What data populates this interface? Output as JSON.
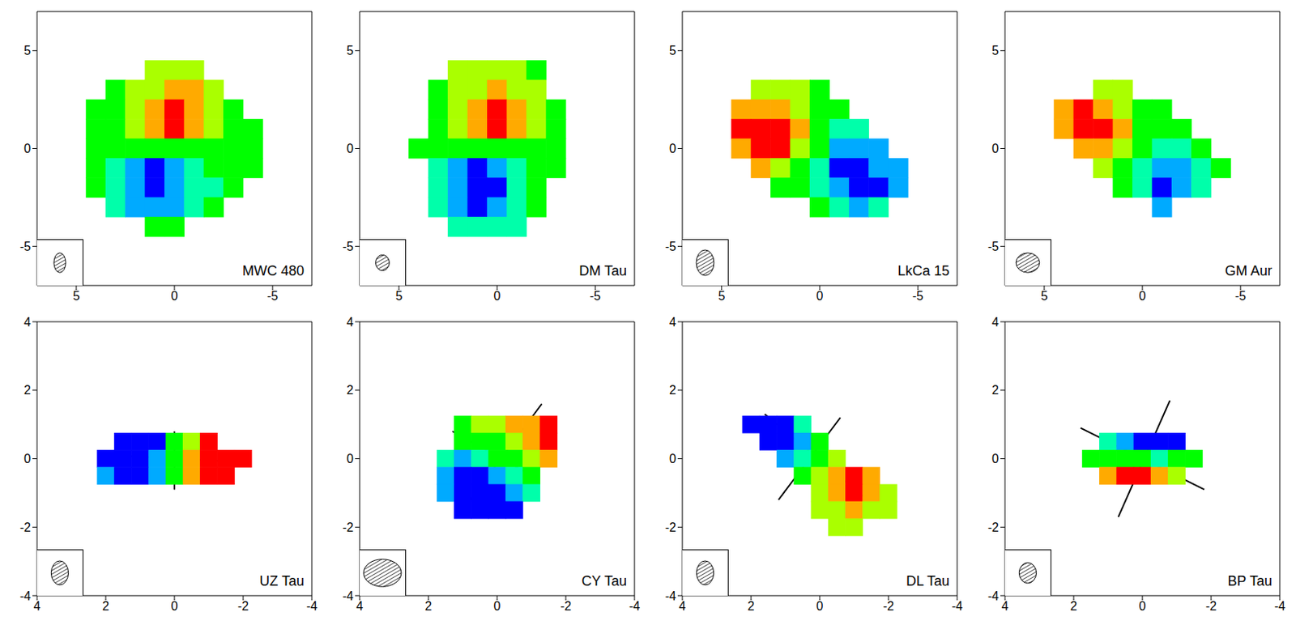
{
  "chart_data": [
    {
      "type": "heatmap",
      "title": "MWC 480",
      "xlim": [
        7,
        -7
      ],
      "ylim": [
        -7,
        7
      ],
      "xticks": [
        5,
        0,
        -5
      ],
      "yticks": [
        -5,
        0,
        5
      ],
      "color_range": [
        -3,
        3
      ],
      "beam": [
        0.6,
        1.0
      ],
      "cells": {
        "x": [
          4,
          3,
          2,
          1,
          0,
          -1,
          -2,
          -3,
          -4
        ],
        "y": [
          4,
          3,
          2,
          1,
          0,
          -1,
          -2,
          -3,
          -4
        ],
        "velocity": [
          [
            null,
            null,
            null,
            1,
            1,
            1,
            null,
            null,
            null
          ],
          [
            null,
            0,
            1,
            1,
            2,
            2,
            1,
            null,
            null
          ],
          [
            0,
            0,
            1,
            2,
            3,
            2,
            1,
            0,
            null
          ],
          [
            0,
            0,
            1,
            2,
            3,
            2,
            1,
            0,
            0
          ],
          [
            0,
            0,
            0,
            0,
            0,
            0,
            0,
            0,
            0
          ],
          [
            0,
            -1,
            -2,
            -3,
            -2,
            -1,
            0,
            0,
            0
          ],
          [
            0,
            -1,
            -2,
            -3,
            -2,
            -1,
            -1,
            0,
            null
          ],
          [
            null,
            -1,
            -2,
            -2,
            -2,
            -1,
            0,
            null,
            null
          ],
          [
            null,
            null,
            null,
            0,
            0,
            null,
            null,
            null,
            null
          ]
        ]
      }
    },
    {
      "type": "heatmap",
      "title": "DM Tau",
      "xlim": [
        7,
        -7
      ],
      "ylim": [
        -7,
        7
      ],
      "xticks": [
        5,
        0,
        -5
      ],
      "yticks": [
        -5,
        0,
        5
      ],
      "color_range": [
        -3,
        3
      ],
      "beam": [
        0.7,
        0.8
      ],
      "lines": [
        [
          1.5,
          0.5,
          -0.8,
          -0.4
        ]
      ],
      "cells": {
        "x": [
          4,
          3,
          2,
          1,
          0,
          -1,
          -2,
          -3,
          -4
        ],
        "y": [
          4,
          3,
          2,
          1,
          0,
          -1,
          -2,
          -3,
          -4
        ],
        "velocity": [
          [
            null,
            null,
            1,
            1,
            1,
            1,
            0,
            null,
            null
          ],
          [
            null,
            0,
            1,
            1,
            2,
            1,
            1,
            null,
            null
          ],
          [
            null,
            0,
            1,
            2,
            3,
            2,
            1,
            0,
            null
          ],
          [
            null,
            0,
            1,
            2,
            3,
            2,
            1,
            0,
            null
          ],
          [
            0,
            0,
            0,
            0,
            0,
            0,
            0,
            0,
            null
          ],
          [
            null,
            -1,
            -2,
            -3,
            -2,
            -1,
            0,
            0,
            null
          ],
          [
            null,
            -1,
            -2,
            -3,
            -3,
            -1,
            0,
            null,
            null
          ],
          [
            null,
            -1,
            -2,
            -3,
            -2,
            -1,
            0,
            null,
            null
          ],
          [
            null,
            null,
            -1,
            -1,
            -1,
            -1,
            null,
            null,
            null
          ]
        ]
      }
    },
    {
      "type": "heatmap",
      "title": "LkCa 15",
      "xlim": [
        7,
        -7
      ],
      "ylim": [
        -7,
        7
      ],
      "xticks": [
        5,
        0,
        -5
      ],
      "yticks": [
        -5,
        0,
        5
      ],
      "color_range": [
        -3,
        3
      ],
      "beam": [
        0.9,
        1.3
      ],
      "lines": [
        [
          1,
          0.8,
          -1.5,
          -0.8
        ]
      ],
      "cells": {
        "x": [
          4,
          3,
          2,
          1,
          0,
          -1,
          -2,
          -3,
          -4
        ],
        "y": [
          3,
          2,
          1,
          0,
          -1,
          -2,
          -3
        ],
        "velocity": [
          [
            null,
            1,
            1,
            1,
            0,
            null,
            null,
            null,
            null
          ],
          [
            2,
            2,
            2,
            1,
            0,
            0,
            null,
            null,
            null
          ],
          [
            3,
            3,
            3,
            2,
            0,
            -1,
            -1,
            null,
            null
          ],
          [
            2,
            3,
            3,
            1,
            0,
            -2,
            -2,
            -2,
            null
          ],
          [
            null,
            2,
            1,
            0,
            -1,
            -3,
            -3,
            -2,
            -2
          ],
          [
            null,
            null,
            0,
            0,
            -1,
            -2,
            -3,
            -3,
            -2
          ],
          [
            null,
            null,
            null,
            null,
            0,
            -1,
            -2,
            -1,
            null
          ]
        ]
      }
    },
    {
      "type": "heatmap",
      "title": "GM Aur",
      "xlim": [
        7,
        -7
      ],
      "ylim": [
        -7,
        7
      ],
      "xticks": [
        5,
        0,
        -5
      ],
      "yticks": [
        -5,
        0,
        5
      ],
      "color_range": [
        -3,
        3
      ],
      "beam": [
        1.2,
        1.0
      ],
      "lines": [
        [
          1,
          1,
          -1.7,
          -1
        ]
      ],
      "cells": {
        "x": [
          4,
          3,
          2,
          1,
          0,
          -1,
          -2,
          -3,
          -4
        ],
        "y": [
          3,
          2,
          1,
          0,
          -1,
          -2,
          -3
        ],
        "velocity": [
          [
            null,
            null,
            1,
            1,
            null,
            null,
            null,
            null,
            null
          ],
          [
            2,
            3,
            2,
            1,
            0,
            0,
            null,
            null,
            null
          ],
          [
            2,
            3,
            3,
            2,
            0,
            0,
            0,
            null,
            null
          ],
          [
            null,
            2,
            2,
            1,
            0,
            -1,
            -1,
            0,
            null
          ],
          [
            null,
            null,
            1,
            0,
            -1,
            -2,
            -2,
            -1,
            0
          ],
          [
            null,
            null,
            null,
            0,
            -1,
            -3,
            -2,
            -1,
            null
          ],
          [
            null,
            null,
            null,
            null,
            null,
            -2,
            null,
            null,
            null
          ]
        ]
      }
    },
    {
      "type": "heatmap",
      "title": "UZ Tau",
      "xlim": [
        4,
        -4
      ],
      "ylim": [
        -4,
        4
      ],
      "xticks": [
        4,
        2,
        0,
        -2,
        -4
      ],
      "yticks": [
        -4,
        -2,
        0,
        2,
        4
      ],
      "color_range": [
        -3,
        3
      ],
      "beam": [
        0.5,
        0.7
      ],
      "lines": [
        [
          1.8,
          0.1,
          -2,
          -0.1
        ],
        [
          0,
          0.8,
          0,
          -0.9
        ]
      ],
      "cells": {
        "x": [
          2.5,
          2,
          1.5,
          1,
          0.5,
          0,
          -0.5,
          -1,
          -1.5,
          -2,
          -2.5
        ],
        "y": [
          0.5,
          0,
          -0.5
        ],
        "velocity": [
          [
            null,
            null,
            -3,
            -3,
            -3,
            0,
            1,
            3,
            null,
            null,
            null
          ],
          [
            null,
            -3,
            -3,
            -3,
            -2,
            0,
            2,
            3,
            3,
            3,
            null
          ],
          [
            null,
            -2,
            -3,
            -3,
            -2,
            0,
            2,
            3,
            3,
            null,
            null
          ]
        ]
      }
    },
    {
      "type": "heatmap",
      "title": "CY Tau",
      "xlim": [
        4,
        -4
      ],
      "ylim": [
        -4,
        4
      ],
      "xticks": [
        4,
        2,
        0,
        -2,
        -4
      ],
      "yticks": [
        -4,
        -2,
        0,
        2,
        4
      ],
      "color_range": [
        -3,
        3
      ],
      "beam": [
        1.1,
        0.8
      ],
      "lines": [
        [
          1,
          -1.5,
          -1.3,
          1.6
        ],
        [
          1.3,
          0.8,
          -1.2,
          -0.6
        ]
      ],
      "cells": {
        "x": [
          2.5,
          2,
          1.5,
          1,
          0.5,
          0,
          -0.5,
          -1,
          -1.5,
          -2,
          -2.5
        ],
        "y": [
          1,
          0.5,
          0,
          -0.5,
          -1,
          -1.5
        ],
        "velocity": [
          [
            null,
            null,
            null,
            0,
            1,
            1,
            2,
            2,
            3,
            null,
            null
          ],
          [
            null,
            null,
            null,
            0,
            0,
            0,
            1,
            2,
            3,
            null,
            null
          ],
          [
            null,
            null,
            -1,
            -2,
            -1,
            0,
            0,
            1,
            2,
            null,
            null
          ],
          [
            null,
            null,
            -2,
            -3,
            -3,
            -2,
            -1,
            0,
            null,
            null,
            null
          ],
          [
            null,
            null,
            -2,
            -3,
            -3,
            -3,
            -2,
            -1,
            null,
            null,
            null
          ],
          [
            null,
            null,
            null,
            -3,
            -3,
            -3,
            -3,
            null,
            null,
            null,
            null
          ]
        ]
      }
    },
    {
      "type": "heatmap",
      "title": "DL Tau",
      "xlim": [
        4,
        -4
      ],
      "ylim": [
        -4,
        4
      ],
      "xticks": [
        4,
        2,
        0,
        -2,
        -4
      ],
      "yticks": [
        -4,
        -2,
        0,
        2,
        4
      ],
      "color_range": [
        -3,
        3
      ],
      "beam": [
        0.5,
        0.7
      ],
      "lines": [
        [
          1.6,
          1.3,
          -1.4,
          -1.2
        ],
        [
          1.2,
          -1.2,
          -0.6,
          1.2
        ]
      ],
      "cells": {
        "x": [
          2.5,
          2,
          1.5,
          1,
          0.5,
          0,
          -0.5,
          -1,
          -1.5,
          -2,
          -2.5
        ],
        "y": [
          1,
          0.5,
          0,
          -0.5,
          -1,
          -1.5,
          -2
        ],
        "velocity": [
          [
            null,
            -3,
            -3,
            -3,
            -1,
            null,
            null,
            null,
            null,
            null,
            null
          ],
          [
            null,
            null,
            -3,
            -3,
            -2,
            0,
            null,
            null,
            null,
            null,
            null
          ],
          [
            null,
            null,
            null,
            -2,
            -1,
            0,
            1,
            null,
            null,
            null,
            null
          ],
          [
            null,
            null,
            null,
            null,
            0,
            1,
            2,
            3,
            2,
            null,
            null
          ],
          [
            null,
            null,
            null,
            null,
            null,
            1,
            2,
            3,
            2,
            1,
            null
          ],
          [
            null,
            null,
            null,
            null,
            null,
            1,
            1,
            2,
            1,
            1,
            null
          ],
          [
            null,
            null,
            null,
            null,
            null,
            null,
            1,
            1,
            null,
            null,
            null
          ]
        ]
      }
    },
    {
      "type": "heatmap",
      "title": "BP Tau",
      "xlim": [
        4,
        -4
      ],
      "ylim": [
        -4,
        4
      ],
      "xticks": [
        4,
        2,
        0,
        -2,
        -4
      ],
      "yticks": [
        -4,
        -2,
        0,
        2,
        4
      ],
      "color_range": [
        -3,
        3
      ],
      "beam": [
        0.5,
        0.6
      ],
      "lines": [
        [
          1.8,
          0.9,
          -1.8,
          -0.9
        ],
        [
          0.7,
          -1.7,
          -0.8,
          1.7
        ]
      ],
      "cells": {
        "x": [
          2.5,
          2,
          1.5,
          1,
          0.5,
          0,
          -0.5,
          -1,
          -1.5,
          -2,
          -2.5
        ],
        "y": [
          0.5,
          0,
          -0.5
        ],
        "velocity": [
          [
            null,
            null,
            null,
            -1,
            -2,
            -3,
            -3,
            -3,
            null,
            null,
            null
          ],
          [
            null,
            null,
            0,
            0,
            0,
            0,
            -1,
            0,
            0,
            null,
            null
          ],
          [
            null,
            null,
            null,
            2,
            3,
            3,
            2,
            1,
            null,
            null,
            null
          ]
        ]
      }
    }
  ]
}
